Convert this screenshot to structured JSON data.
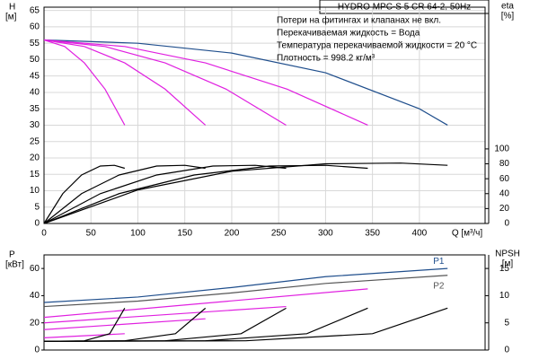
{
  "chart_data": [
    {
      "type": "line",
      "title": "HYDRO MPC-S 5 CR 64-2, 50Hz",
      "notes": [
        "Потери на фитингах и клапанах не вкл.",
        "Перекачиваемая жидкость = Вода",
        "Температура перекачиваемой жидкости = 20 °C",
        "Плотность = 998.2 кг/м³"
      ],
      "y_label": "H",
      "y_unit": "[м]",
      "y2_label": "eta",
      "y2_unit": "[%]",
      "x_label": "Q [м³/ч]",
      "xlim": [
        0,
        470
      ],
      "xticks": [
        0,
        50,
        100,
        150,
        200,
        250,
        300,
        350,
        400
      ],
      "ylim": [
        0,
        66
      ],
      "yticks": [
        0,
        5,
        10,
        15,
        20,
        25,
        30,
        35,
        40,
        45,
        50,
        55,
        60,
        65
      ],
      "y2lim": [
        0,
        290
      ],
      "y2ticks": [
        0,
        20,
        40,
        60,
        80,
        100
      ],
      "grid": true,
      "series": [
        {
          "color": "#1f4e8c",
          "x": [
            0,
            100,
            200,
            300,
            400,
            430
          ],
          "values": [
            56,
            55,
            52,
            46,
            35,
            30
          ]
        },
        {
          "color": "#e020e0",
          "x": [
            0,
            22,
            43,
            65,
            86
          ],
          "values": [
            56,
            54,
            49,
            41,
            30
          ]
        },
        {
          "color": "#e020e0",
          "x": [
            0,
            43,
            86,
            129,
            172
          ],
          "values": [
            56,
            54,
            49,
            41,
            30
          ]
        },
        {
          "color": "#e020e0",
          "x": [
            0,
            65,
            129,
            194,
            258
          ],
          "values": [
            56,
            54,
            49,
            41,
            30
          ]
        },
        {
          "color": "#e020e0",
          "x": [
            0,
            86,
            172,
            259,
            345
          ],
          "values": [
            56,
            54,
            49,
            41,
            30
          ]
        },
        {
          "color": "#000000",
          "axis": "y2",
          "x": [
            0,
            20,
            40,
            60,
            75,
            86
          ],
          "values": [
            0,
            40,
            65,
            77,
            78,
            74
          ]
        },
        {
          "color": "#000000",
          "axis": "y2",
          "x": [
            0,
            40,
            80,
            120,
            150,
            172
          ],
          "values": [
            0,
            40,
            65,
            77,
            78,
            74
          ]
        },
        {
          "color": "#000000",
          "axis": "y2",
          "x": [
            0,
            60,
            120,
            180,
            225,
            258
          ],
          "values": [
            0,
            40,
            65,
            77,
            78,
            74
          ]
        },
        {
          "color": "#000000",
          "axis": "y2",
          "x": [
            0,
            80,
            160,
            240,
            300,
            345
          ],
          "values": [
            0,
            40,
            65,
            77,
            78,
            74
          ]
        },
        {
          "color": "#000000",
          "axis": "y2",
          "x": [
            0,
            100,
            200,
            300,
            380,
            430
          ],
          "values": [
            0,
            45,
            70,
            80,
            81,
            78
          ]
        }
      ]
    },
    {
      "type": "line",
      "y_label": "P",
      "y_unit": "[кВт]",
      "y2_label": "NPSH",
      "y2_unit": "[м]",
      "xlim": [
        0,
        470
      ],
      "ylim": [
        0,
        70
      ],
      "yticks": [
        0,
        20,
        40,
        60
      ],
      "y2lim": [
        0,
        17.5
      ],
      "y2ticks": [
        0,
        5,
        10,
        15
      ],
      "series": [
        {
          "name": "P1",
          "color": "#1f4e8c",
          "x": [
            0,
            100,
            200,
            300,
            430
          ],
          "values": [
            35,
            39,
            46,
            54,
            60
          ]
        },
        {
          "name": "P2",
          "color": "#555555",
          "x": [
            0,
            100,
            200,
            300,
            430
          ],
          "values": [
            32,
            36,
            42,
            49,
            55
          ]
        },
        {
          "color": "#e020e0",
          "x": [
            0,
            86
          ],
          "values": [
            9,
            12
          ]
        },
        {
          "color": "#e020e0",
          "x": [
            0,
            172
          ],
          "values": [
            15,
            23
          ]
        },
        {
          "color": "#e020e0",
          "x": [
            0,
            258
          ],
          "values": [
            20,
            32
          ]
        },
        {
          "color": "#e020e0",
          "x": [
            0,
            345
          ],
          "values": [
            24,
            45
          ]
        },
        {
          "color": "#000000",
          "axis": "y2",
          "x": [
            0,
            43,
            70,
            86
          ],
          "values": [
            1.6,
            1.7,
            3,
            7.7
          ]
        },
        {
          "color": "#000000",
          "axis": "y2",
          "x": [
            0,
            86,
            140,
            172
          ],
          "values": [
            1.6,
            1.7,
            3,
            7.7
          ]
        },
        {
          "color": "#000000",
          "axis": "y2",
          "x": [
            0,
            129,
            210,
            258
          ],
          "values": [
            1.6,
            1.7,
            3,
            7.7
          ]
        },
        {
          "color": "#000000",
          "axis": "y2",
          "x": [
            0,
            172,
            280,
            345
          ],
          "values": [
            1.6,
            1.7,
            3,
            7.7
          ]
        },
        {
          "color": "#000000",
          "axis": "y2",
          "x": [
            0,
            215,
            350,
            430
          ],
          "values": [
            1.6,
            1.7,
            3,
            7.7
          ]
        }
      ]
    }
  ]
}
